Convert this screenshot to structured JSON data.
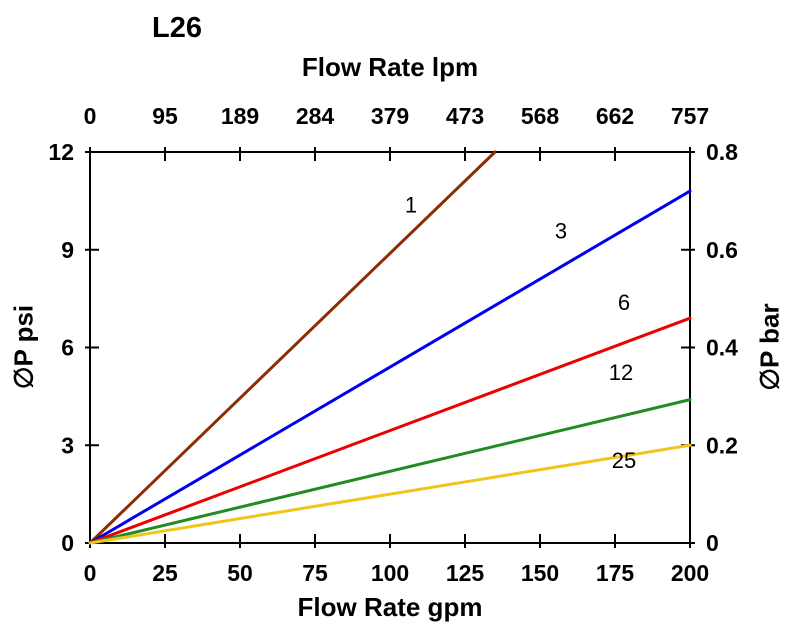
{
  "chart_data": {
    "type": "line",
    "title": "L26",
    "x_top_label": "Flow Rate lpm",
    "x_bottom_label": "Flow Rate gpm",
    "y_left_label": "∅P psi",
    "y_right_label": "∅P bar",
    "xlim": [
      0,
      200
    ],
    "ylim": [
      0,
      12
    ],
    "x_gpm_ticks": [
      0,
      25,
      50,
      75,
      100,
      125,
      150,
      175,
      200
    ],
    "x_lpm_ticks": [
      0,
      95,
      189,
      284,
      379,
      473,
      568,
      662,
      757
    ],
    "y_psi_ticks": [
      0,
      3,
      6,
      9,
      12
    ],
    "y_bar_ticks": [
      0,
      0.2,
      0.4,
      0.6,
      0.8
    ],
    "grid": false,
    "legend": "inline-line-labels",
    "series": [
      {
        "name": "1",
        "color": "#8C2D04",
        "x": [
          0,
          135
        ],
        "y": [
          0,
          12
        ],
        "label_x": 107,
        "label_y": 10.15
      },
      {
        "name": "3",
        "color": "#0000EE",
        "x": [
          0,
          200
        ],
        "y": [
          0,
          10.8
        ],
        "label_x": 157,
        "label_y": 9.35
      },
      {
        "name": "6",
        "color": "#EE0000",
        "x": [
          0,
          200
        ],
        "y": [
          0,
          6.9
        ],
        "label_x": 178,
        "label_y": 7.15
      },
      {
        "name": "12",
        "color": "#228B22",
        "x": [
          0,
          200
        ],
        "y": [
          0,
          4.4
        ],
        "label_x": 177,
        "label_y": 5.0
      },
      {
        "name": "25",
        "color": "#F0C419",
        "x": [
          0,
          200
        ],
        "y": [
          0,
          3.0
        ],
        "label_x": 178,
        "label_y": 2.3
      }
    ]
  }
}
